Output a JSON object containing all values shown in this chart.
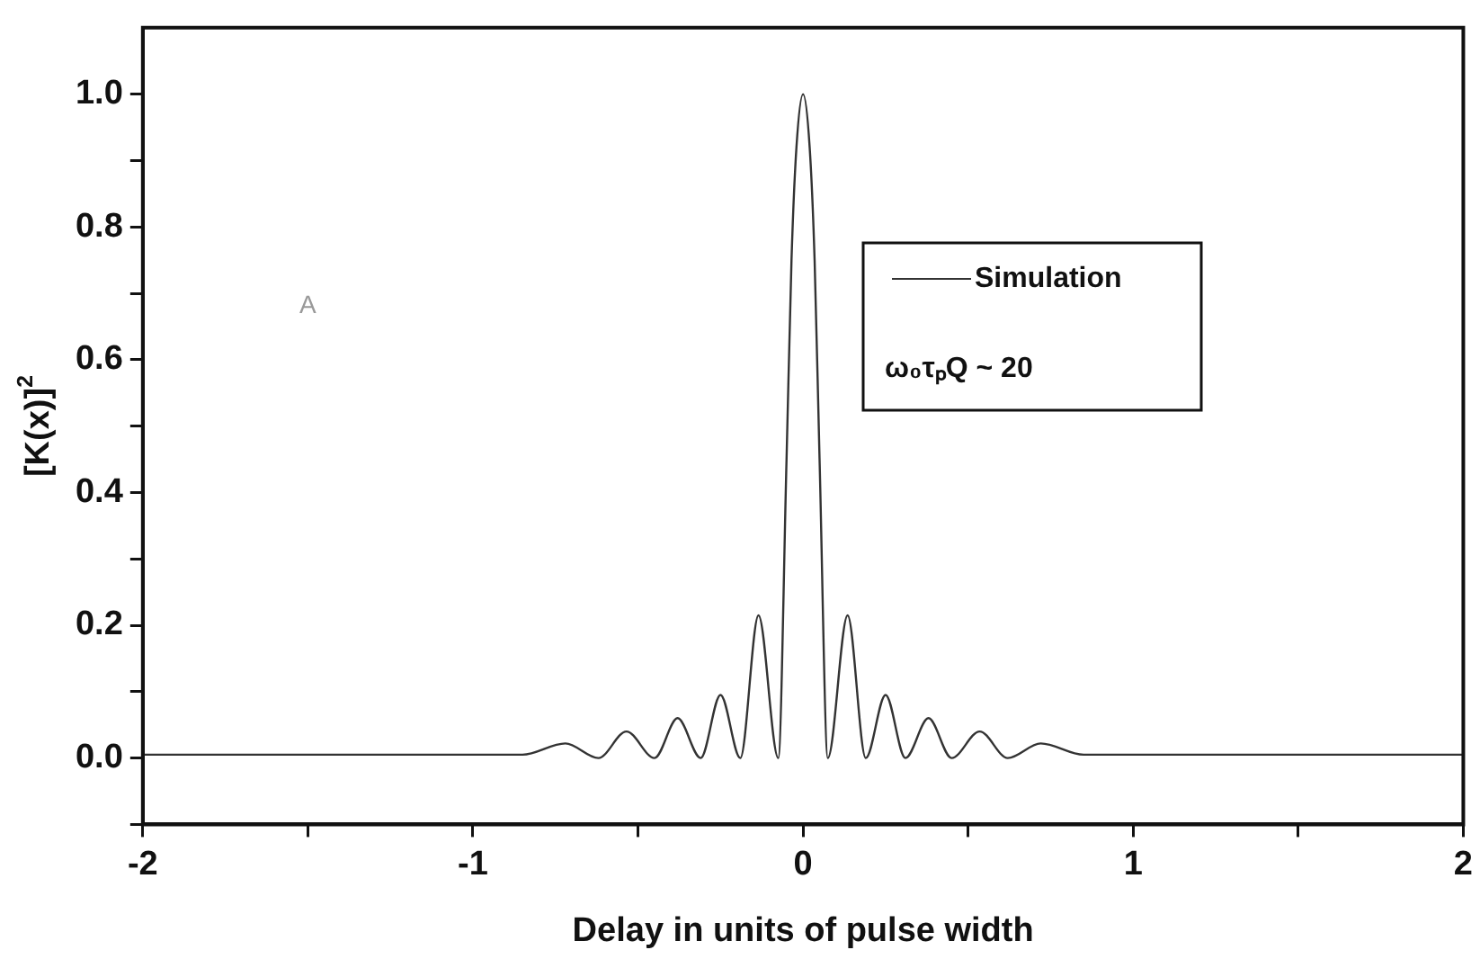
{
  "chart_data": {
    "type": "line",
    "xlabel": "Delay in units of pulse width",
    "ylabel": "[K(x)]$^{2}$",
    "xlim": [
      -2,
      2
    ],
    "ylim": [
      -0.1,
      1.1
    ],
    "xticks": [
      -2,
      {
        "value": -1.5,
        "label": null
      },
      -1,
      {
        "value": -0.5,
        "label": null
      },
      0,
      {
        "value": 0.5,
        "label": null
      },
      1,
      {
        "value": 1.5,
        "label": null
      },
      2
    ],
    "yticks": [
      {
        "value": -0.1,
        "label": null
      },
      "0.0",
      {
        "value": 0.1,
        "label": null
      },
      0.2,
      {
        "value": 0.3,
        "label": null
      },
      0.4,
      {
        "value": 0.5,
        "label": null
      },
      0.6,
      {
        "value": 0.7,
        "label": null
      },
      0.8,
      {
        "value": 0.9,
        "label": null
      },
      "1.0"
    ],
    "legend": "right",
    "marker": "none",
    "line_style": "solid",
    "grid": false,
    "annotations": [
      "A",
      "ω₀τₚQ ~ 20"
    ],
    "series": [
      {
        "name": "Simulation",
        "color": "#333333",
        "x": [
          -2,
          -1.5,
          -1,
          -0.85,
          -0.72,
          -0.62,
          -0.535,
          -0.45,
          -0.38,
          -0.31,
          -0.25,
          -0.19,
          -0.135,
          -0.075,
          -0.05,
          -0.035,
          -0.02,
          0,
          0.02,
          0.035,
          0.05,
          0.075,
          0.135,
          0.19,
          0.25,
          0.31,
          0.38,
          0.45,
          0.535,
          0.62,
          0.72,
          0.85,
          1,
          1.5,
          2
        ],
        "values": [
          0.005,
          0.005,
          0.005,
          0.005,
          0.022,
          0,
          0.04,
          0,
          0.06,
          0,
          0.095,
          0,
          0.215,
          0,
          0.45,
          0.75,
          0.92,
          1.0,
          0.92,
          0.75,
          0.45,
          0,
          0.215,
          0,
          0.095,
          0,
          0.06,
          0,
          0.04,
          0,
          0.022,
          0.005,
          0.005,
          0.005,
          0.005
        ]
      }
    ]
  }
}
